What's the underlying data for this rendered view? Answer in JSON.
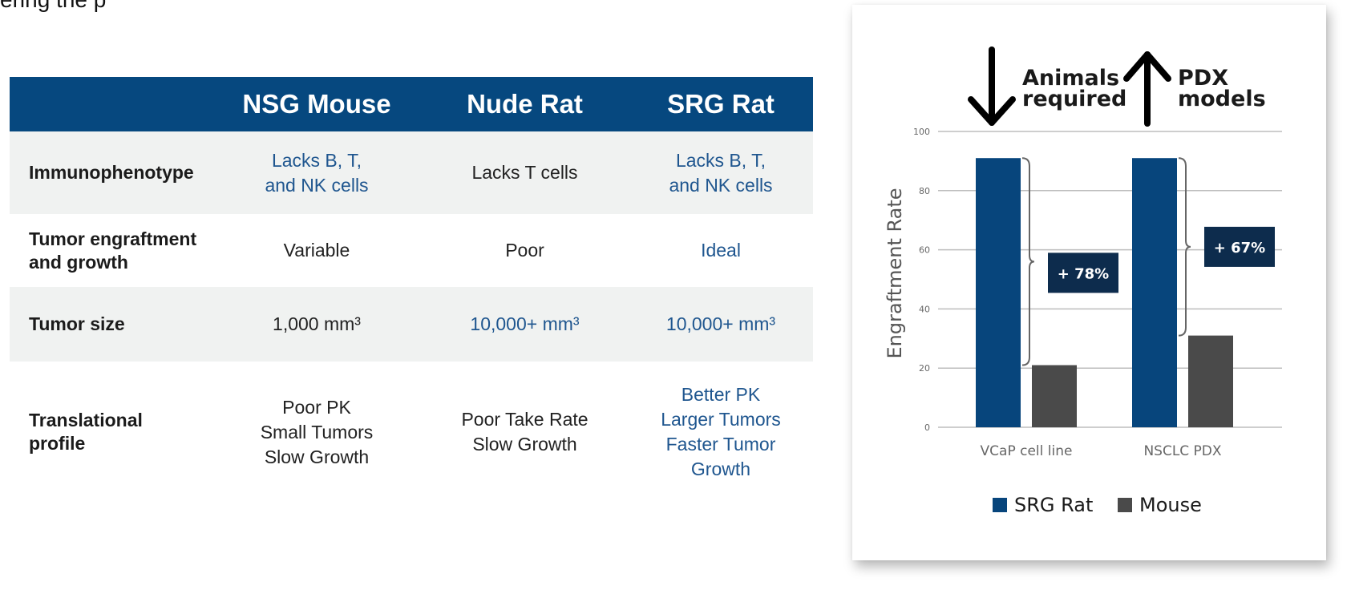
{
  "page": {
    "top_text": "ering the p"
  },
  "comparison_table": {
    "columns": [
      "",
      "NSG Mouse",
      "Nude Rat",
      "SRG Rat"
    ],
    "rows": [
      {
        "label": "Immunophenotype",
        "cells": [
          {
            "lines": [
              "Lacks B, T,",
              "and NK cells"
            ],
            "highlight": true
          },
          {
            "lines": [
              "Lacks T cells"
            ],
            "highlight": false
          },
          {
            "lines": [
              "Lacks B, T,",
              "and NK cells"
            ],
            "highlight": true
          }
        ]
      },
      {
        "label_lines": [
          "Tumor engraftment",
          "and growth"
        ],
        "cells": [
          {
            "lines": [
              "Variable"
            ],
            "highlight": false
          },
          {
            "lines": [
              "Poor"
            ],
            "highlight": false
          },
          {
            "lines": [
              "Ideal"
            ],
            "highlight": true
          }
        ]
      },
      {
        "label": "Tumor size",
        "cells": [
          {
            "lines": [
              "1,000 mm³"
            ],
            "highlight": false
          },
          {
            "lines": [
              "10,000+ mm³"
            ],
            "highlight": true
          },
          {
            "lines": [
              "10,000+ mm³"
            ],
            "highlight": true
          }
        ]
      },
      {
        "label_lines": [
          "Translational",
          "profile"
        ],
        "cells": [
          {
            "lines": [
              "Poor PK",
              "Small Tumors",
              "Slow Growth"
            ],
            "highlight": false
          },
          {
            "lines": [
              "Poor Take Rate",
              "Slow Growth"
            ],
            "highlight": false
          },
          {
            "lines": [
              "Better PK",
              "Larger Tumors",
              "Faster Tumor",
              "Growth"
            ],
            "highlight": true
          }
        ]
      }
    ]
  },
  "colors": {
    "header_blue": "#06487f",
    "highlight_text": "#1f568f",
    "row_shade": "#f0f2f1",
    "srg_bar": "#07457c",
    "mouse_bar": "#4a4a4a",
    "callout_bg": "#0d2c4d"
  },
  "callouts": {
    "down": {
      "icon": "arrow-down-icon",
      "lines": [
        "Animals",
        "required"
      ]
    },
    "up": {
      "icon": "arrow-up-icon",
      "lines": [
        "PDX",
        "models"
      ]
    }
  },
  "chart_data": {
    "type": "bar",
    "title": "",
    "xlabel": "",
    "ylabel": "Engraftment Rate",
    "categories": [
      "VCaP cell line",
      "NSCLC PDX"
    ],
    "series": [
      {
        "name": "SRG Rat",
        "values": [
          91,
          91
        ],
        "color": "#07457c"
      },
      {
        "name": "Mouse",
        "values": [
          21,
          31
        ],
        "color": "#4a4a4a"
      }
    ],
    "ylim": [
      0,
      100
    ],
    "yticks": [
      0,
      20,
      40,
      60,
      80,
      100
    ],
    "grid": true,
    "annotations": [
      "+ 78%",
      "+ 67%"
    ],
    "legend": "bottom"
  }
}
